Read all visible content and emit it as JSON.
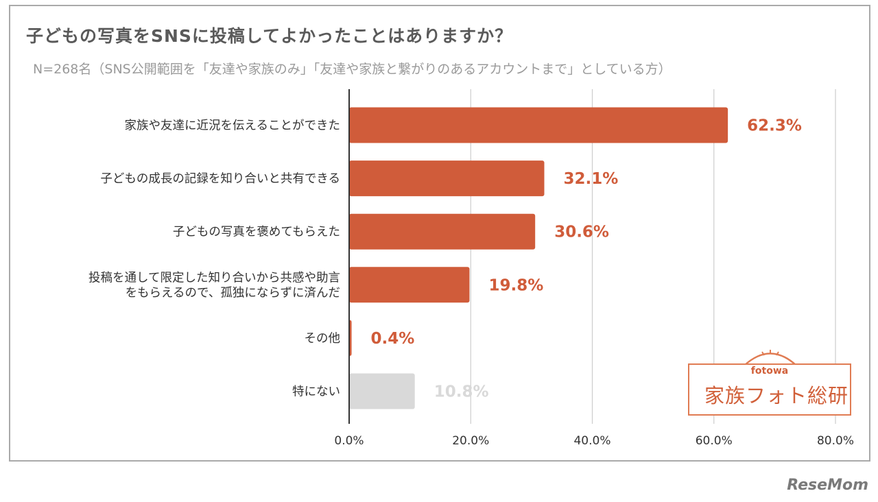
{
  "chart_data": {
    "type": "bar",
    "orientation": "horizontal",
    "title": "子どもの写真をSNSに投稿してよかったことはありますか？",
    "subtitle": "N=268名（SNS公開範囲を「友達や家族のみ」「友達や家族と繋がりのあるアカウントまで」としている方）",
    "categories": [
      [
        "家族や友達に近況を伝えることができた"
      ],
      [
        "子どもの成長の記録を知り合いと共有できる"
      ],
      [
        "子どもの写真を褒めてもらえた"
      ],
      [
        "投稿を通して限定した知り合いから共感や助言",
        "をもらえるので、孤独にならずに済んだ"
      ],
      [
        "その他"
      ],
      [
        "特にない"
      ]
    ],
    "values": [
      62.3,
      32.1,
      30.6,
      19.8,
      0.4,
      10.8
    ],
    "value_labels": [
      "62.3%",
      "32.1%",
      "30.6%",
      "19.8%",
      "0.4%",
      "10.8%"
    ],
    "bar_colors": [
      "#d05c3a",
      "#d05c3a",
      "#d05c3a",
      "#d05c3a",
      "#d05c3a",
      "#d9d9d9"
    ],
    "label_colors": [
      "#d05c3a",
      "#d05c3a",
      "#d05c3a",
      "#d05c3a",
      "#d05c3a",
      "#d9d9d9"
    ],
    "xlim": [
      0,
      80
    ],
    "xticks": [
      0,
      20,
      40,
      60,
      80
    ],
    "xtick_labels": [
      "0.0%",
      "20.0%",
      "40.0%",
      "60.0%",
      "80.0%"
    ],
    "grid": true
  },
  "logo": {
    "sub": "fotowa",
    "main": "家族フォト総研"
  },
  "watermark": "ReseMom"
}
